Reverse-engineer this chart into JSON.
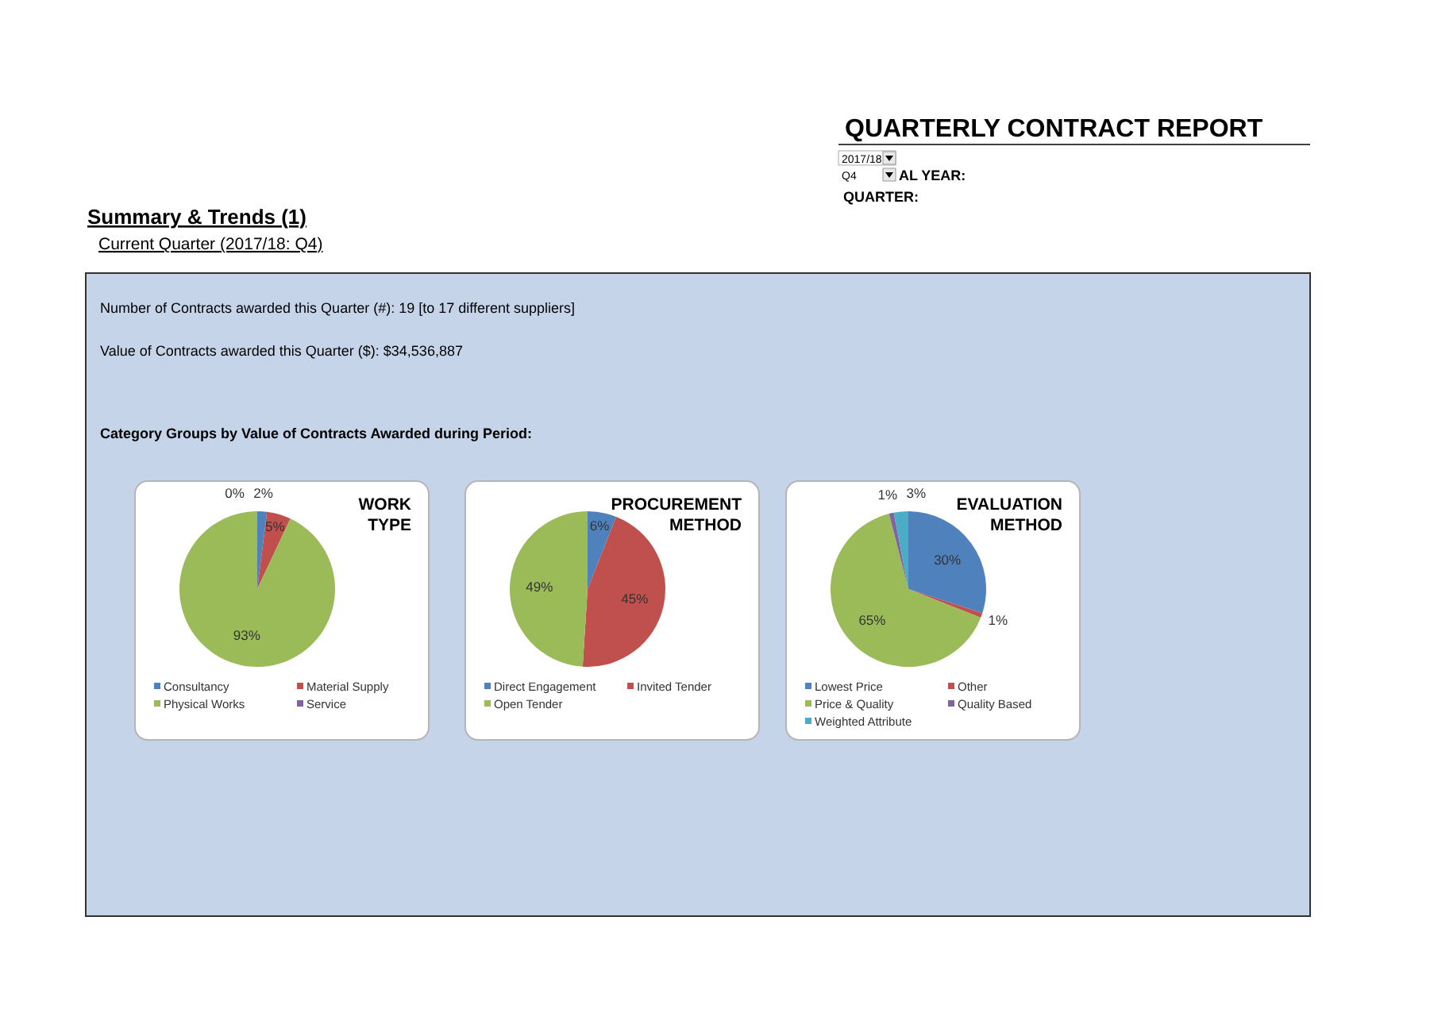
{
  "chart_data": [
    {
      "type": "other",
      "title": "QUARTERLY CONTRACT REPORT",
      "annotations": [
        "2017/18",
        "Q4",
        "AL YEAR:",
        "QUARTER:",
        "Summary & Trends (1)",
        "Current Quarter (2017/18: Q4)",
        "Number of Contracts awarded this Quarter (#): 19 [to 17 different suppliers]",
        "Value of Contracts awarded this Quarter ($): $34,536,887",
        "Category Groups by Value of Contracts Awarded during Period:"
      ]
    },
    {
      "type": "pie",
      "title": "WORK TYPE",
      "categories": [
        "Consultancy",
        "Material Supply",
        "Physical Works",
        "Service"
      ],
      "values": [
        2,
        5,
        93,
        0
      ],
      "colors": [
        "#4f81bd",
        "#c0504d",
        "#9bbb59",
        "#8064a2"
      ],
      "value_labels": [
        "2%",
        "5%",
        "93%",
        "0%"
      ],
      "legend": "bottom"
    },
    {
      "type": "pie",
      "title": "PROCUREMENT METHOD",
      "categories": [
        "Direct Engagement",
        "Invited Tender",
        "Open Tender"
      ],
      "values": [
        6,
        45,
        49
      ],
      "colors": [
        "#4f81bd",
        "#c0504d",
        "#9bbb59"
      ],
      "value_labels": [
        "6%",
        "45%",
        "49%"
      ],
      "legend": "bottom"
    },
    {
      "type": "pie",
      "title": "EVALUATION METHOD",
      "categories": [
        "Lowest Price",
        "Other",
        "Price & Quality",
        "Quality Based",
        "Weighted Attribute"
      ],
      "values": [
        30,
        1,
        65,
        1,
        3
      ],
      "colors": [
        "#4f81bd",
        "#c0504d",
        "#9bbb59",
        "#8064a2",
        "#4bacc6"
      ],
      "value_labels": [
        "30%",
        "1%",
        "65%",
        "1%",
        "3%"
      ],
      "legend": "bottom"
    }
  ]
}
